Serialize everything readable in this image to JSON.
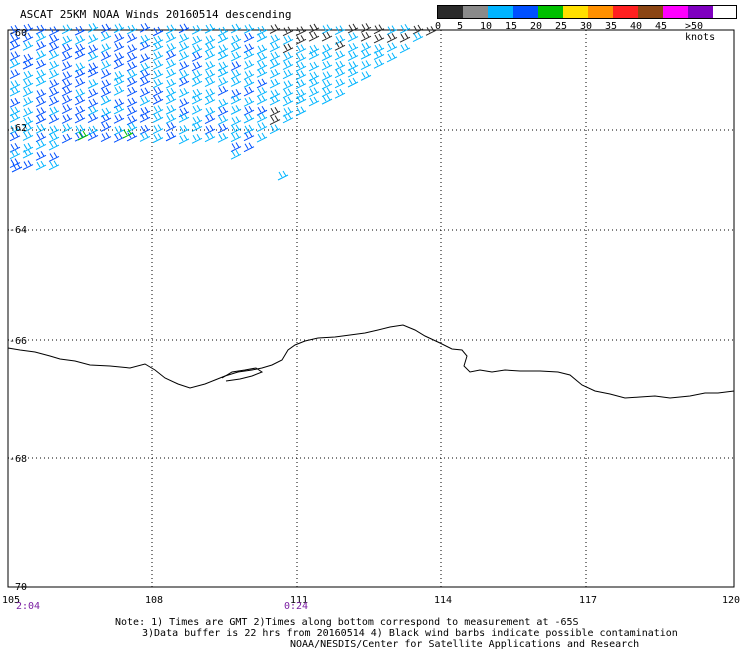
{
  "title": "ASCAT 25KM NOAA Winds 20160514 descending",
  "legend": {
    "labels": [
      "0",
      "5",
      "10",
      "15",
      "20",
      "25",
      "30",
      "35",
      "40",
      "45",
      ">50 knots"
    ],
    "colors": [
      "#2a2a2a",
      "#8a8a8a",
      "#00b4ff",
      "#0050ff",
      "#00c000",
      "#ffe000",
      "#ff9000",
      "#ff2020",
      "#8b4513",
      "#ff00ff",
      "#7f00c0"
    ]
  },
  "axes": {
    "lat_labels": [
      "-60",
      "-62",
      "-64",
      "-66",
      "-68",
      "-70"
    ],
    "lon_labels": [
      "105",
      "108",
      "111",
      "114",
      "117",
      "120"
    ]
  },
  "times": [
    "2:04",
    "0:24"
  ],
  "notes": {
    "line1": "Note: 1) Times are GMT 2)Times along bottom correspond to measurement at -65S",
    "line2": "3)Data buffer is 22 hrs from 20160514 4) Black wind barbs indicate possible contamination",
    "line3": "NOAA/NESDIS/Center for Satellite Applications and Research"
  }
}
